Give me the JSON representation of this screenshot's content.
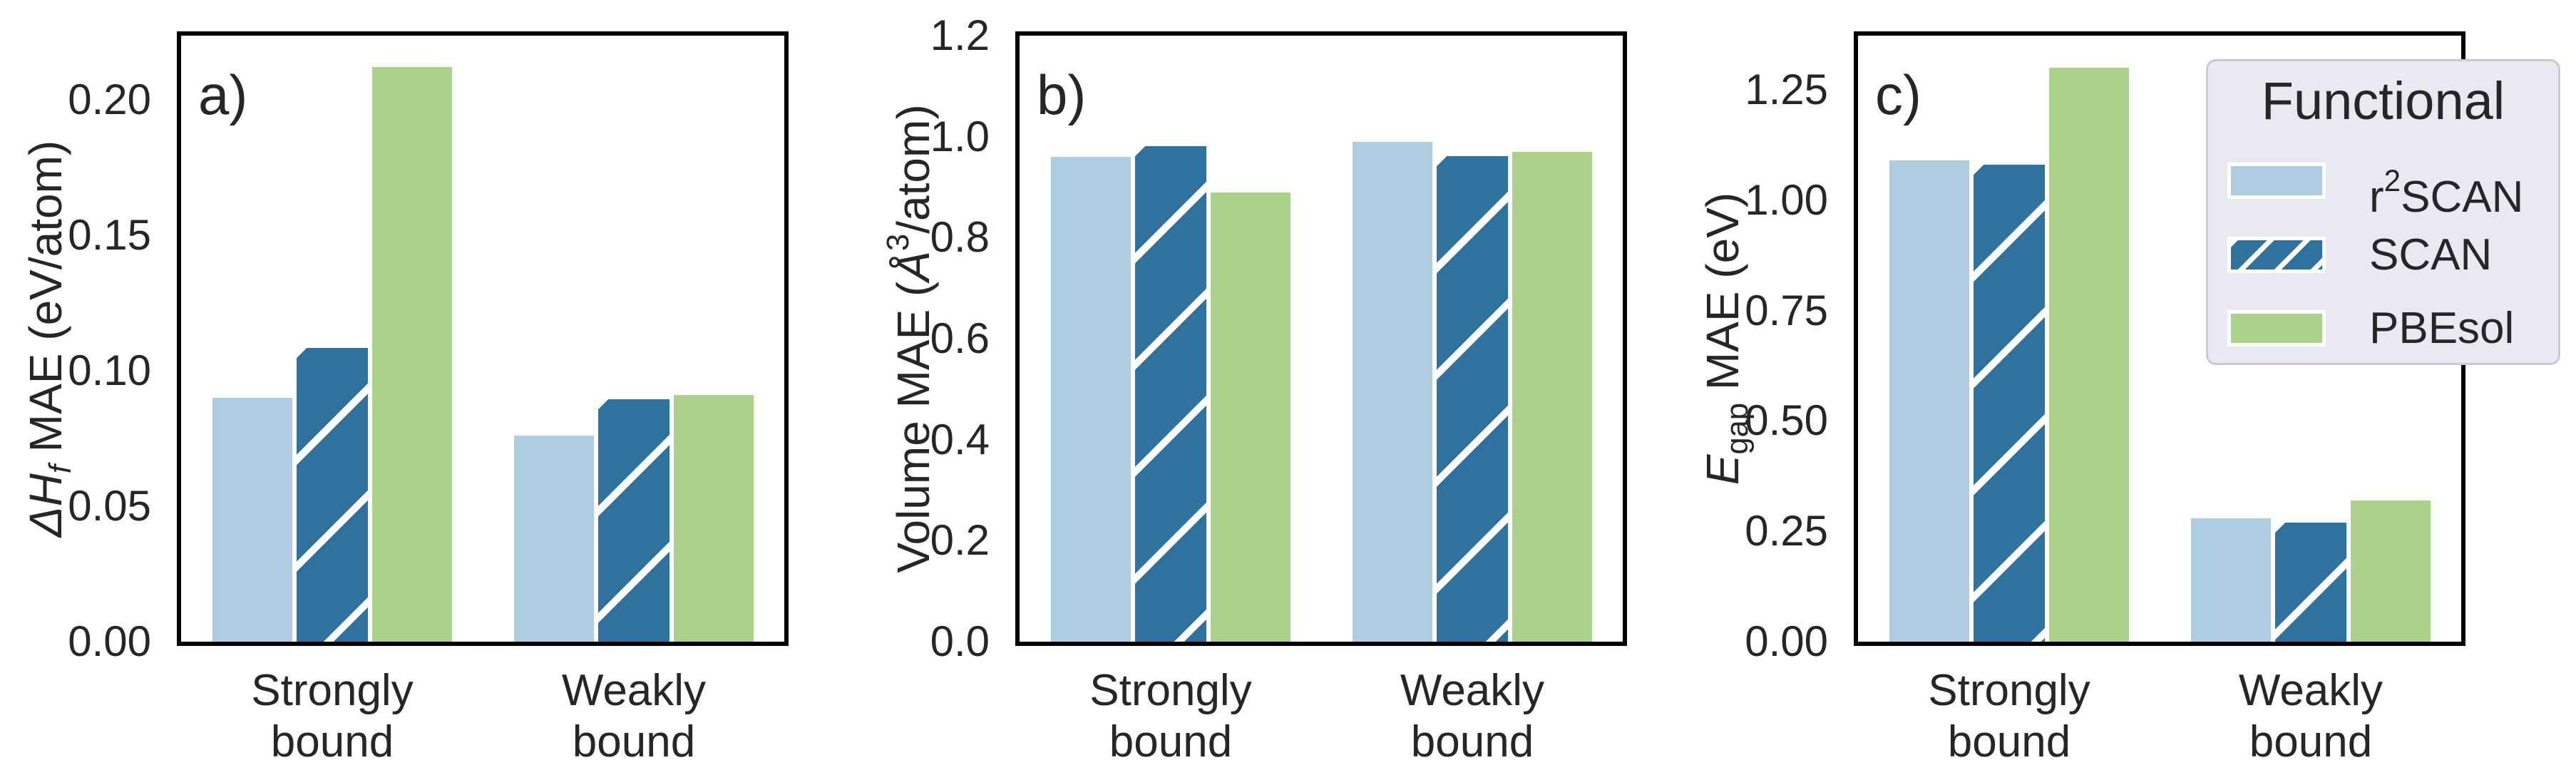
{
  "figure": {
    "background": "#ffffff",
    "text_color": "#262626",
    "spine_color": "#000000",
    "panels": [
      {
        "letter": "a)",
        "ylabel_tokens": [
          {
            "t": "Δ",
            "i": true
          },
          {
            "t": "H",
            "i": true
          },
          {
            "t": "f",
            "i": true,
            "pos": "sub"
          },
          {
            "t": " MAE (eV/atom)"
          }
        ],
        "ytick_labels": [
          "0.00",
          "0.05",
          "0.10",
          "0.15",
          "0.20"
        ],
        "ytick_values": [
          0,
          0.05,
          0.1,
          0.15,
          0.2
        ]
      },
      {
        "letter": "b)",
        "ylabel_tokens": [
          {
            "t": "Volume MAE ("
          },
          {
            "t": "Å",
            "i": true
          },
          {
            "t": "3",
            "pos": "sup"
          },
          {
            "t": "/atom)"
          }
        ],
        "ytick_labels": [
          "0.0",
          "0.2",
          "0.4",
          "0.6",
          "0.8",
          "1.0",
          "1.2"
        ],
        "ytick_values": [
          0,
          0.2,
          0.4,
          0.6,
          0.8,
          1.0,
          1.2
        ]
      },
      {
        "letter": "c)",
        "ylabel_tokens": [
          {
            "t": "E",
            "i": true
          },
          {
            "t": "gap",
            "pos": "sub"
          },
          {
            "t": " MAE (eV)"
          }
        ],
        "ytick_labels": [
          "0.00",
          "0.25",
          "0.50",
          "0.75",
          "1.00",
          "1.25"
        ],
        "ytick_values": [
          0,
          0.25,
          0.5,
          0.75,
          1.0,
          1.25
        ]
      }
    ],
    "xtick_lines": [
      [
        "Strongly",
        "bound"
      ],
      [
        "Weakly",
        "bound"
      ]
    ],
    "series_styles": [
      {
        "name": "r2SCAN",
        "color": "#aecde0",
        "hatch": false
      },
      {
        "name": "SCAN",
        "color": "#30729e",
        "hatch": true,
        "hatch_color": "#ffffff"
      },
      {
        "name": "PBEsol",
        "color": "#abd18b",
        "hatch": false
      }
    ],
    "legend": {
      "title": "Functional",
      "background": "#e9e9f1",
      "border_color": "#c9c9d3",
      "entries": [
        {
          "name": "r2SCAN",
          "tokens": [
            {
              "t": "r"
            },
            {
              "t": "2",
              "pos": "sup"
            },
            {
              "t": "SCAN"
            }
          ]
        },
        {
          "name": "SCAN",
          "tokens": [
            {
              "t": "SCAN"
            }
          ]
        },
        {
          "name": "PBEsol",
          "tokens": [
            {
              "t": "PBEsol"
            }
          ]
        }
      ]
    }
  },
  "chart_data": [
    {
      "type": "bar",
      "panel": "a)",
      "title": "",
      "xlabel": "",
      "ylabel": "ΔHf MAE (eV/atom)",
      "categories": [
        "Strongly bound",
        "Weakly bound"
      ],
      "series": [
        {
          "name": "r2SCAN",
          "values": [
            0.09,
            0.076
          ]
        },
        {
          "name": "SCAN",
          "values": [
            0.11,
            0.091
          ]
        },
        {
          "name": "PBEsol",
          "values": [
            0.212,
            0.091
          ]
        }
      ],
      "ylim": [
        0,
        0.2237
      ],
      "yticks": [
        0,
        0.05,
        0.1,
        0.15,
        0.2
      ],
      "grid": false,
      "legend_position": "none"
    },
    {
      "type": "bar",
      "panel": "b)",
      "title": "",
      "xlabel": "",
      "ylabel": "Volume MAE (Å3/atom)",
      "categories": [
        "Strongly bound",
        "Weakly bound"
      ],
      "series": [
        {
          "name": "r2SCAN",
          "values": [
            0.96,
            0.99
          ]
        },
        {
          "name": "SCAN",
          "values": [
            0.99,
            0.97
          ]
        },
        {
          "name": "PBEsol",
          "values": [
            0.89,
            0.97
          ]
        }
      ],
      "ylim": [
        0,
        1.2
      ],
      "yticks": [
        0,
        0.2,
        0.4,
        0.6,
        0.8,
        1.0,
        1.2
      ],
      "grid": false,
      "legend_position": "none"
    },
    {
      "type": "bar",
      "panel": "c)",
      "title": "",
      "xlabel": "",
      "ylabel": "Egap MAE (eV)",
      "categories": [
        "Strongly bound",
        "Weakly bound"
      ],
      "series": [
        {
          "name": "r2SCAN",
          "values": [
            1.09,
            0.28
          ]
        },
        {
          "name": "SCAN",
          "values": [
            1.09,
            0.28
          ]
        },
        {
          "name": "PBEsol",
          "values": [
            1.3,
            0.32
          ]
        }
      ],
      "ylim": [
        0,
        1.373
      ],
      "yticks": [
        0,
        0.25,
        0.5,
        0.75,
        1.0,
        1.25
      ],
      "grid": false,
      "legend_position": "upper right"
    }
  ]
}
